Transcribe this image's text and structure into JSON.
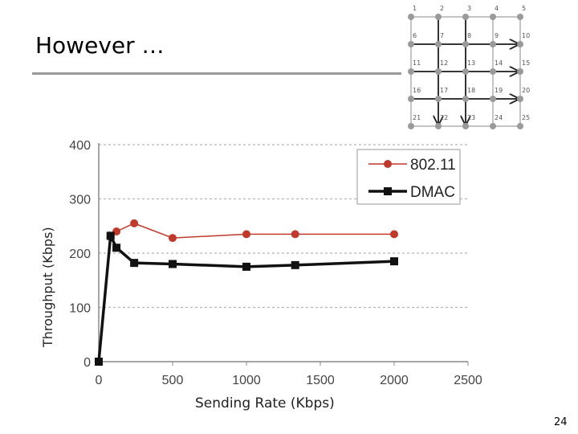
{
  "slide": {
    "title": "However …",
    "page_number": "24"
  },
  "grid_diagram": {
    "node_labels": [
      "1",
      "2",
      "3",
      "4",
      "5",
      "6",
      "7",
      "8",
      "9",
      "10",
      "11",
      "12",
      "13",
      "14",
      "15",
      "16",
      "17",
      "18",
      "19",
      "20",
      "21",
      "22",
      "23",
      "24",
      "25"
    ],
    "colors": {
      "node": "#9a9a9a",
      "grid_line": "#b0b0b0",
      "flow_arrow": "#222222"
    }
  },
  "chart_data": {
    "type": "line",
    "xlabel": "Sending Rate (Kbps)",
    "ylabel": "Throughput (Kbps)",
    "xlim": [
      0,
      2500
    ],
    "ylim": [
      0,
      400
    ],
    "x_ticks": [
      "0",
      "500",
      "1000",
      "1500",
      "2000",
      "2500"
    ],
    "y_ticks": [
      "0",
      "100",
      "200",
      "300",
      "400"
    ],
    "grid": "horizontal-dashed",
    "legend_position": "top-right",
    "series": [
      {
        "name": "802.11",
        "color": "#c0392b",
        "marker": "circle",
        "x": [
          0,
          80,
          120,
          240,
          500,
          1000,
          1330,
          2000
        ],
        "y": [
          0,
          230,
          240,
          255,
          228,
          235,
          235,
          235
        ]
      },
      {
        "name": "DMAC",
        "color": "#111111",
        "marker": "square",
        "x": [
          0,
          80,
          120,
          240,
          500,
          1000,
          1330,
          2000
        ],
        "y": [
          0,
          232,
          210,
          182,
          180,
          175,
          178,
          185
        ]
      }
    ]
  }
}
